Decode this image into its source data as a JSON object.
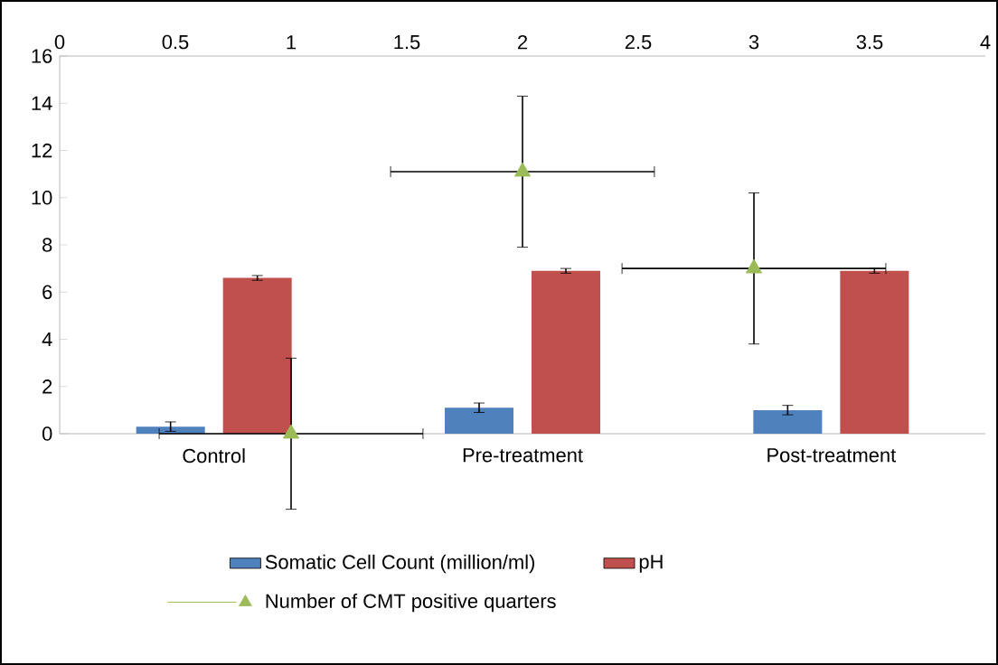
{
  "chart_data": {
    "type": "bar",
    "categories": [
      "Control",
      "Pre-treatment",
      "Post-treatment"
    ],
    "series": [
      {
        "name": "Somatic Cell Count (million/ml)",
        "color": "#4f81bd",
        "values": [
          0.3,
          1.1,
          1.0
        ],
        "errors": [
          0.2,
          0.2,
          0.2
        ]
      },
      {
        "name": "pH",
        "color": "#c0504d",
        "values": [
          6.6,
          6.9,
          6.9
        ],
        "errors": [
          0.1,
          0.1,
          0.1
        ]
      },
      {
        "name": "Number of CMT positive quarters",
        "type": "scatter",
        "axis": "x2",
        "marker": "triangle",
        "color": "#9bbb59",
        "x": [
          1,
          2,
          3
        ],
        "values": [
          0,
          11.1,
          7.0
        ],
        "errors": [
          3.2,
          3.2,
          3.2
        ],
        "xerrors": [
          0.57,
          0.57,
          0.57
        ]
      }
    ],
    "ylim": [
      0,
      16
    ],
    "yticks": [
      0,
      2,
      4,
      6,
      8,
      10,
      12,
      14,
      16
    ],
    "x2lim": [
      0,
      4
    ],
    "x2ticks": [
      0,
      0.5,
      1,
      1.5,
      2,
      2.5,
      3,
      3.5,
      4
    ],
    "grid": false,
    "legend": "bottom"
  }
}
